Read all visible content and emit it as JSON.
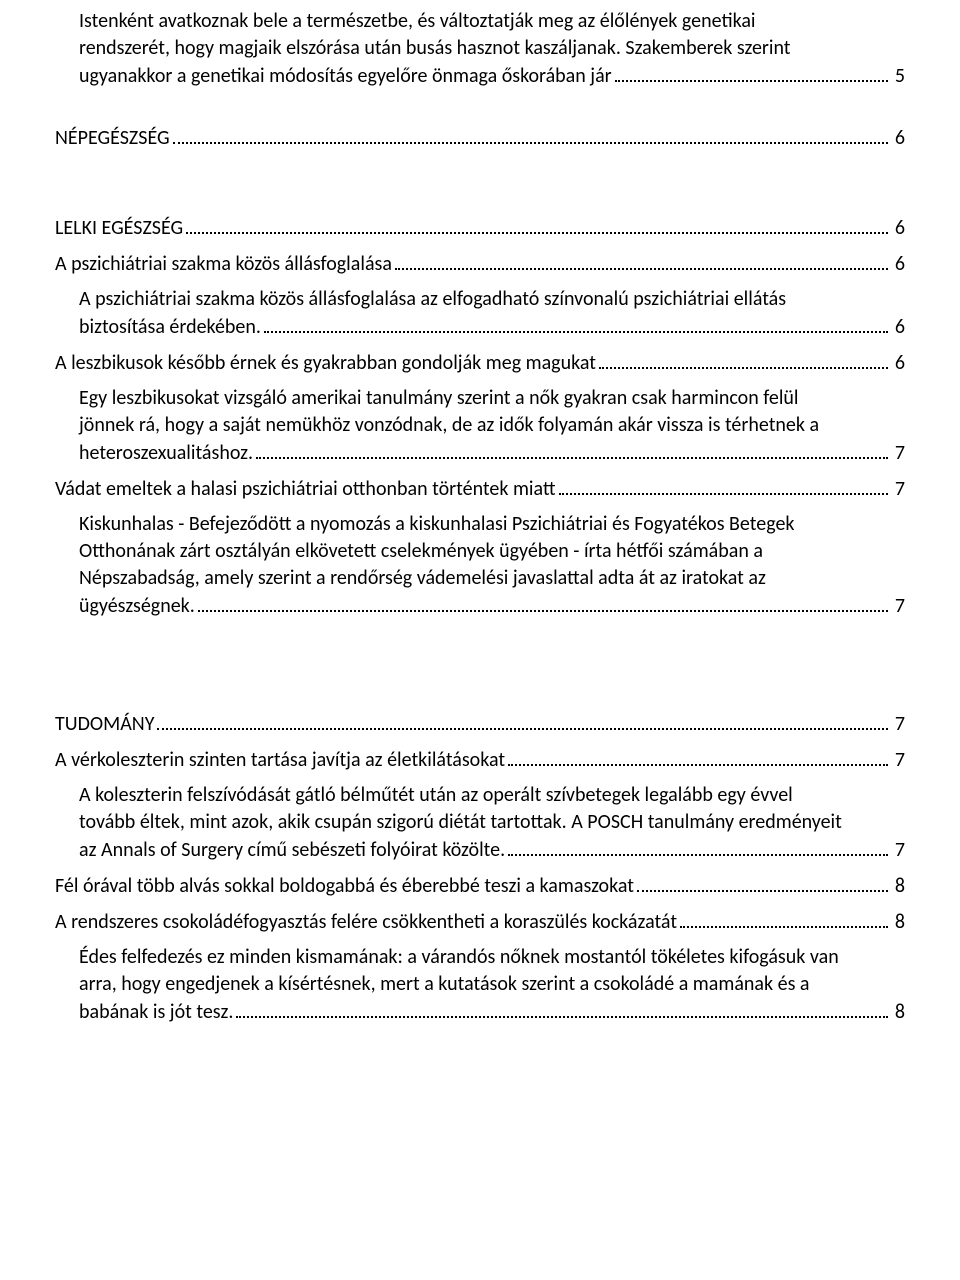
{
  "entries": [
    {
      "type": "multiline",
      "indent": 1,
      "pre": "Istenként avatkoznak bele a természetbe, és változtatják meg az élőlények genetikai rendszerét, hogy magjaik elszórása után busás hasznot kaszáljanak. Szakemberek szerint ugyanakkor a genetikai módosítás egyelőre önmaga őskorában jár",
      "tail": "",
      "page": "5"
    },
    {
      "type": "single",
      "indent": 0,
      "text": "NÉPEGÉSZSÉG",
      "page": "6",
      "gapBefore": "sm"
    },
    {
      "type": "single",
      "indent": 0,
      "text": "LELKI EGÉSZSÉG",
      "page": "6",
      "gapBefore": "md"
    },
    {
      "type": "single",
      "indent": 0,
      "text": "A pszichiátriai szakma közös állásfoglalása",
      "page": "6"
    },
    {
      "type": "multiline",
      "indent": 1,
      "pre": "A pszichiátriai szakma közös állásfoglalása az elfogadható színvonalú pszichiátriai ellátás biztosítása érdekében.",
      "tail": "",
      "page": "6"
    },
    {
      "type": "single",
      "indent": 0,
      "text": "A leszbikusok később érnek és gyakrabban gondolják meg magukat",
      "page": "6"
    },
    {
      "type": "multiline",
      "indent": 1,
      "pre": "Egy leszbikusokat vizsgáló amerikai tanulmány szerint a nők gyakran csak harmincon felül jönnek rá, hogy a saját nemükhöz vonzódnak, de az idők folyamán akár vissza is térhetnek a heteroszexualitáshoz.",
      "tail": "",
      "page": "7"
    },
    {
      "type": "single",
      "indent": 0,
      "text": "Vádat emeltek a halasi pszichiátriai otthonban történtek miatt",
      "page": "7"
    },
    {
      "type": "multiline",
      "indent": 1,
      "pre": "Kiskunhalas - Befejeződött a nyomozás a kiskunhalasi Pszichiátriai és Fogyatékos Betegek Otthonának zárt osztályán elkövetett cselekmények ügyében - írta hétfői számában a Népszabadság, amely szerint a rendőrség vádemelési javaslattal adta át az iratokat az ügyészségnek.",
      "tail": "",
      "page": "7"
    },
    {
      "type": "single",
      "indent": 0,
      "text": "TUDOMÁNY",
      "page": "7",
      "gapBefore": "lg"
    },
    {
      "type": "single",
      "indent": 0,
      "text": "A vérkoleszterin szinten tartása javítja az életkilátásokat",
      "page": "7"
    },
    {
      "type": "multiline",
      "indent": 1,
      "pre": "A koleszterin felszívódását gátló bélműtét után az operált szívbetegek legalább egy évvel tovább éltek, mint azok, akik csupán szigorú diétát tartottak. A POSCH tanulmány eredményeit az Annals of Surgery című sebészeti folyóirat közölte.",
      "tail": "",
      "page": "7"
    },
    {
      "type": "single",
      "indent": 0,
      "text": "Fél órával több alvás sokkal boldogabbá és éberebbé teszi a kamaszokat",
      "page": "8"
    },
    {
      "type": "single",
      "indent": 0,
      "text": "A rendszeres csokoládéfogyasztás felére csökkentheti a koraszülés kockázatát",
      "page": "8"
    },
    {
      "type": "multiline",
      "indent": 1,
      "pre": "Édes felfedezés ez minden kismamának: a várandós nőknek mostantól tökéletes kifogásuk van arra, hogy engedjenek a kísértésnek, mert a kutatások szerint a csokoládé a mamának és a babának is jót tesz.",
      "tail": "",
      "page": "8"
    }
  ]
}
